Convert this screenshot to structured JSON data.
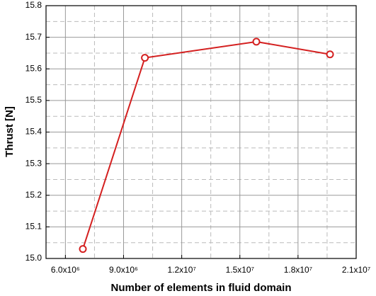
{
  "chart_data": {
    "type": "line",
    "xlabel": "Number of elements in fluid domain",
    "ylabel": "Thrust [N]",
    "x": [
      6900000,
      10100000,
      15850000,
      19650000
    ],
    "series": [
      {
        "name": "Thrust",
        "color": "#d42020",
        "values": [
          15.03,
          15.635,
          15.686,
          15.646
        ]
      }
    ],
    "xlim": [
      5000000,
      21000000
    ],
    "xticks": [
      {
        "value": 6000000,
        "label": "6.0x10⁶"
      },
      {
        "value": 9000000,
        "label": "9.0x10⁶"
      },
      {
        "value": 12000000,
        "label": "1.2x10⁷"
      },
      {
        "value": 15000000,
        "label": "1.5x10⁷"
      },
      {
        "value": 18000000,
        "label": "1.8x10⁷"
      },
      {
        "value": 21000000,
        "label": "2.1x10⁷"
      }
    ],
    "xminor_ticks": [
      7500000,
      10500000,
      13500000,
      16500000,
      19500000
    ],
    "ylim": [
      15.0,
      15.8
    ],
    "yticks": [
      {
        "value": 15.0,
        "label": "15.0"
      },
      15.1,
      15.2,
      15.3,
      15.4,
      15.5,
      15.6,
      15.7,
      15.8
    ],
    "yminor_ticks": [
      15.05,
      15.15,
      15.25,
      15.35,
      15.45,
      15.55,
      15.65,
      15.75
    ],
    "grid": true
  }
}
